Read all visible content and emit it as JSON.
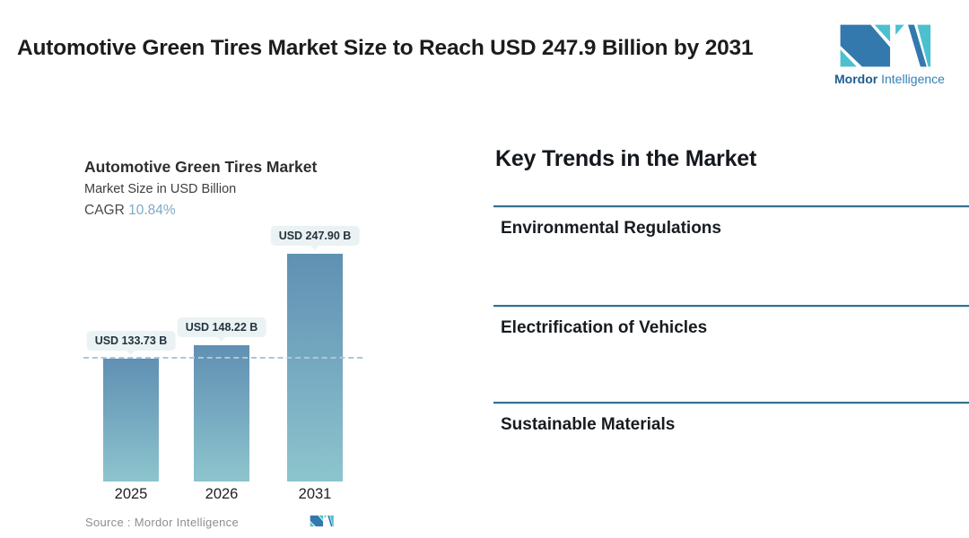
{
  "header": {
    "title": "Automotive Green Tires Market Size to Reach USD 247.9 Billion by 2031",
    "brand": {
      "name_bold": "Mordor",
      "name_light": "Intelligence"
    }
  },
  "chart": {
    "title": "Automotive Green Tires Market",
    "subtitle": "Market Size in USD Billion",
    "cagr_label": "CAGR",
    "cagr_value": "10.84%",
    "source_label": "Source :  Mordor Intelligence"
  },
  "chart_data": {
    "type": "bar",
    "title": "Automotive Green Tires Market",
    "subtitle": "Market Size in USD Billion",
    "unit": "USD Billion",
    "cagr_percent": 10.84,
    "categories": [
      "2025",
      "2026",
      "2031"
    ],
    "values": [
      133.73,
      148.22,
      247.9
    ],
    "bar_labels": [
      "USD 133.73 B",
      "USD 148.22 B",
      "USD 247.90 B"
    ],
    "ylim": [
      0,
      260
    ],
    "grid": false,
    "legend": "none",
    "reference_line": {
      "at_value": 133.73,
      "style": "dashed"
    },
    "colors": {
      "bar_top": "#6090b3",
      "bar_bottom": "#8dc5ce",
      "dashed_line": "#abc8d9",
      "cagr_value": "#7fa9c5",
      "badge_bg": "#eaf2f4"
    }
  },
  "trends": {
    "heading": "Key Trends in the Market",
    "divider_color": "#35708f",
    "items": [
      {
        "label": "Environmental Regulations"
      },
      {
        "label": "Electrification of Vehicles"
      },
      {
        "label": "Sustainable Materials"
      }
    ]
  }
}
